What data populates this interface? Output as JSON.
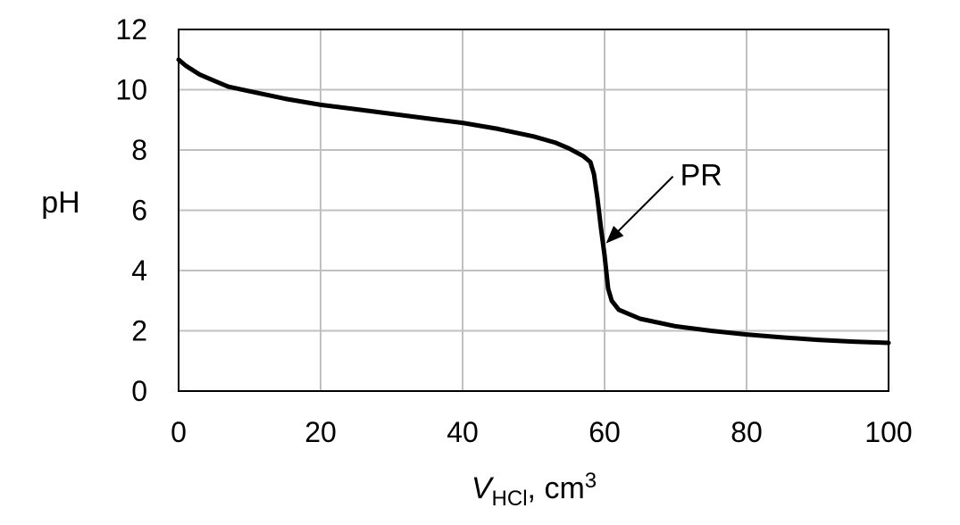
{
  "chart_data": {
    "type": "line",
    "title": "",
    "ylabel": "pH",
    "xlabel": {
      "main": "V",
      "subscript": "HCl",
      "unit": ", cm",
      "superscript": "3"
    },
    "xlim": [
      0,
      100
    ],
    "ylim": [
      0,
      12
    ],
    "x_ticks": [
      0,
      20,
      40,
      60,
      80,
      100
    ],
    "y_ticks": [
      0,
      2,
      4,
      6,
      8,
      10,
      12
    ],
    "grid": true,
    "line_color": "#000000",
    "grid_color": "#c0c0c0",
    "series": [
      {
        "x": [
          0,
          1,
          3,
          5,
          7,
          10,
          15,
          20,
          25,
          30,
          35,
          40,
          45,
          50,
          53,
          55,
          57,
          58,
          58.5,
          59,
          59.5,
          60,
          60.5,
          61,
          62,
          65,
          70,
          75,
          80,
          85,
          90,
          95,
          100
        ],
        "y": [
          11.0,
          10.8,
          10.5,
          10.3,
          10.1,
          9.95,
          9.7,
          9.5,
          9.35,
          9.2,
          9.05,
          8.9,
          8.7,
          8.45,
          8.25,
          8.05,
          7.8,
          7.6,
          7.2,
          6.4,
          5.4,
          4.5,
          3.4,
          3.0,
          2.7,
          2.4,
          2.15,
          2.0,
          1.88,
          1.78,
          1.7,
          1.64,
          1.6
        ]
      }
    ],
    "annotations": [
      {
        "text": "PR",
        "x": 60.2,
        "y": 4.9
      }
    ]
  }
}
